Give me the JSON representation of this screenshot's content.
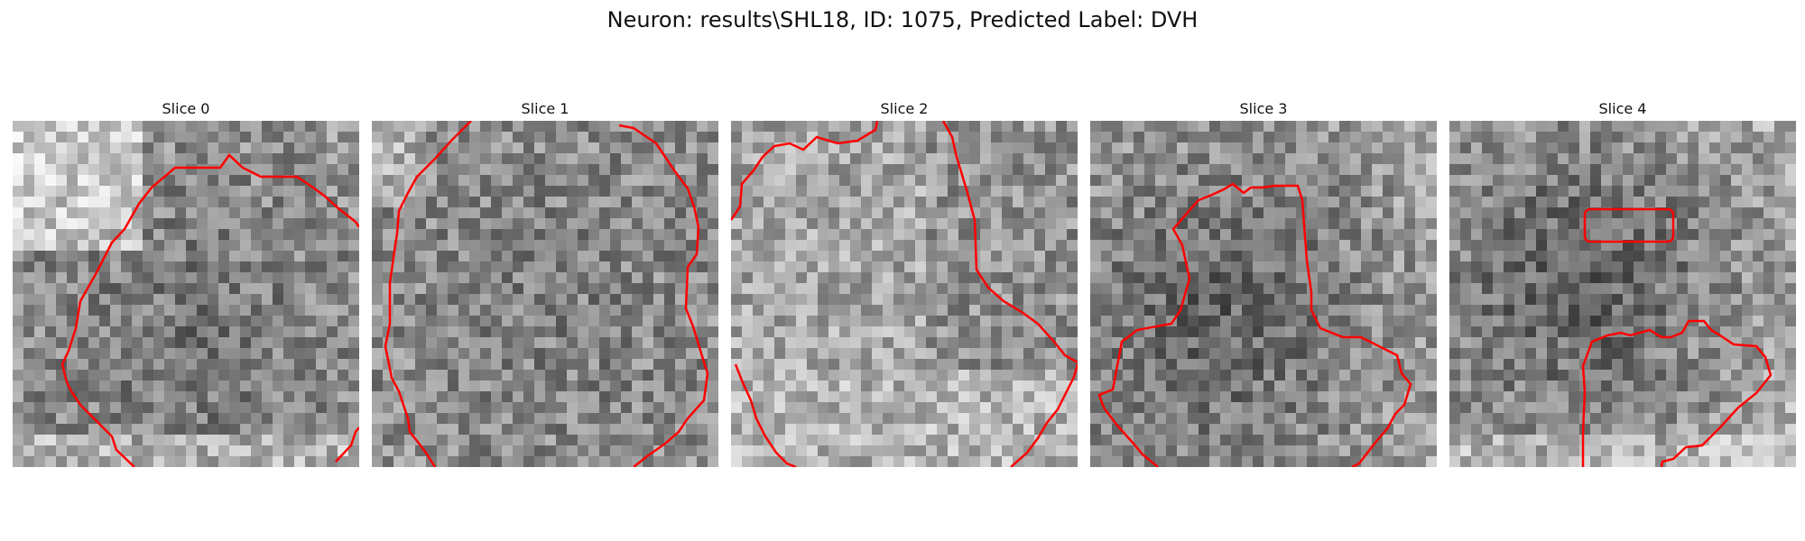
{
  "figure": {
    "title": "Neuron: results\\SHL18, ID: 1075, Predicted Label: DVH"
  },
  "slices": [
    {
      "title": "Slice 0"
    },
    {
      "title": "Slice 1"
    },
    {
      "title": "Slice 2"
    },
    {
      "title": "Slice 3"
    },
    {
      "title": "Slice 4"
    }
  ],
  "colors": {
    "contour": "#ff0000",
    "background": "#ffffff"
  }
}
